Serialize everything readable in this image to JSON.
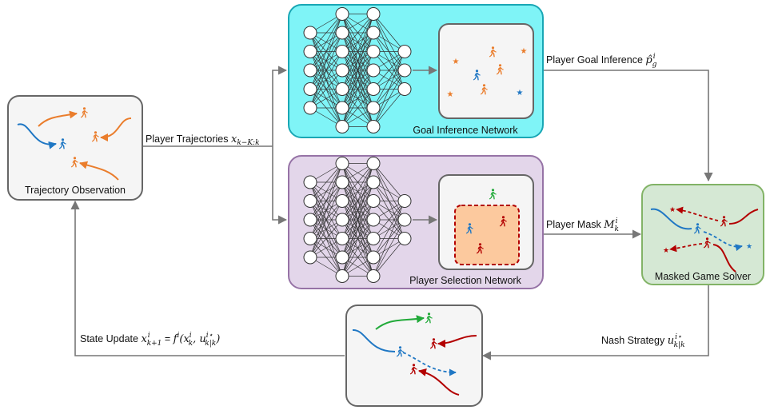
{
  "boxes": {
    "trajectory_observation": "Trajectory Observation",
    "goal_inference_network": "Goal Inference Network",
    "player_selection_network": "Player Selection Network",
    "masked_game_solver": "Masked Game Solver"
  },
  "edges": {
    "player_trajectories": {
      "text": "Player Trajectories ",
      "var": "x",
      "sub": "k−K:k"
    },
    "player_goal_inference": {
      "text": "Player Goal Inference ",
      "var": "p̂",
      "sub": "g",
      "sup": "i"
    },
    "player_mask": {
      "text": "Player Mask ",
      "var": "M",
      "sub": "k",
      "sup": "i"
    },
    "nash_strategy": {
      "text": "Nash Strategy ",
      "var": "u",
      "sub": "k|k",
      "sup": "i⋆"
    },
    "state_update": {
      "text": "State Update ",
      "lhs_var": "x",
      "lhs_sub": "k+1",
      "lhs_sup": "i",
      "eq": " = ",
      "fn": "f",
      "fn_sup": "i",
      "args": "(x",
      "args_sub": "k",
      "args_sup": "i",
      "args_mid": ", u",
      "args_sub2": "k|k",
      "args_sup2": "i⋆",
      "args_end": ")"
    }
  },
  "colors": {
    "goal_net_fill": "#7ff4f7",
    "goal_net_stroke": "#19a7b5",
    "selection_fill": "#e3d6ea",
    "selection_stroke": "#9673a6",
    "solver_fill": "#d5e8d4",
    "solver_stroke": "#82b366",
    "gray_fill": "#f5f5f5",
    "gray_stroke": "#666666",
    "orange": "#ea7d2c",
    "blue": "#1f77c4",
    "red": "#b30000",
    "green": "#22aa3a",
    "mask_fill": "#fcc99e",
    "mask_stroke": "#b30000"
  },
  "icons": [
    "walking-person-icon",
    "star-icon",
    "neural-network-icon",
    "arrow-icon"
  ]
}
